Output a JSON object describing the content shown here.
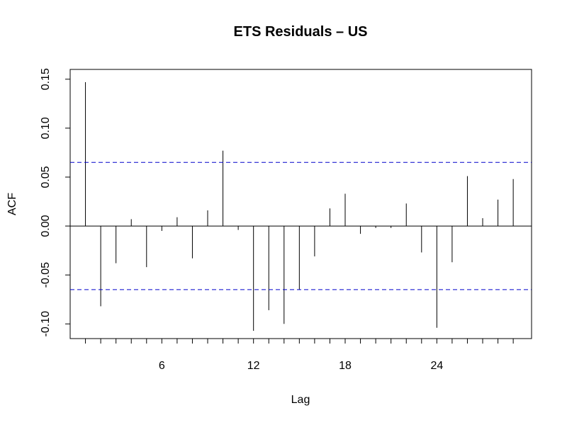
{
  "chart_data": {
    "type": "bar",
    "title": "ETS Residuals – US",
    "xlabel": "Lag",
    "ylabel": "ACF",
    "xlim": [
      0.0,
      30.2
    ],
    "ylim": [
      -0.115,
      0.16
    ],
    "xticks": [
      6,
      12,
      18,
      24
    ],
    "xticks_minor": [
      1,
      2,
      3,
      4,
      5,
      6,
      7,
      8,
      9,
      10,
      11,
      12,
      13,
      14,
      15,
      16,
      17,
      18,
      19,
      20,
      21,
      22,
      23,
      24,
      25,
      26,
      27,
      28,
      29
    ],
    "yticks": [
      -0.1,
      -0.05,
      0.0,
      0.05,
      0.1,
      0.15
    ],
    "ytick_labels": [
      "-0.10",
      "-0.05",
      "0.00",
      "0.05",
      "0.10",
      "0.15"
    ],
    "ci": [
      0.065,
      -0.065
    ],
    "ci_color": "#0000cc",
    "grid": false,
    "lags": [
      1,
      2,
      3,
      4,
      5,
      6,
      7,
      8,
      9,
      10,
      11,
      12,
      13,
      14,
      15,
      16,
      17,
      18,
      19,
      20,
      21,
      22,
      23,
      24,
      25,
      26,
      27,
      28,
      29
    ],
    "values": [
      0.147,
      -0.082,
      -0.038,
      0.007,
      -0.042,
      -0.005,
      0.009,
      -0.033,
      0.016,
      0.077,
      -0.004,
      -0.107,
      -0.086,
      -0.1,
      -0.065,
      -0.031,
      0.018,
      0.033,
      -0.008,
      -0.002,
      -0.002,
      0.023,
      -0.027,
      -0.104,
      -0.037,
      0.051,
      0.008,
      0.027,
      0.048
    ]
  }
}
